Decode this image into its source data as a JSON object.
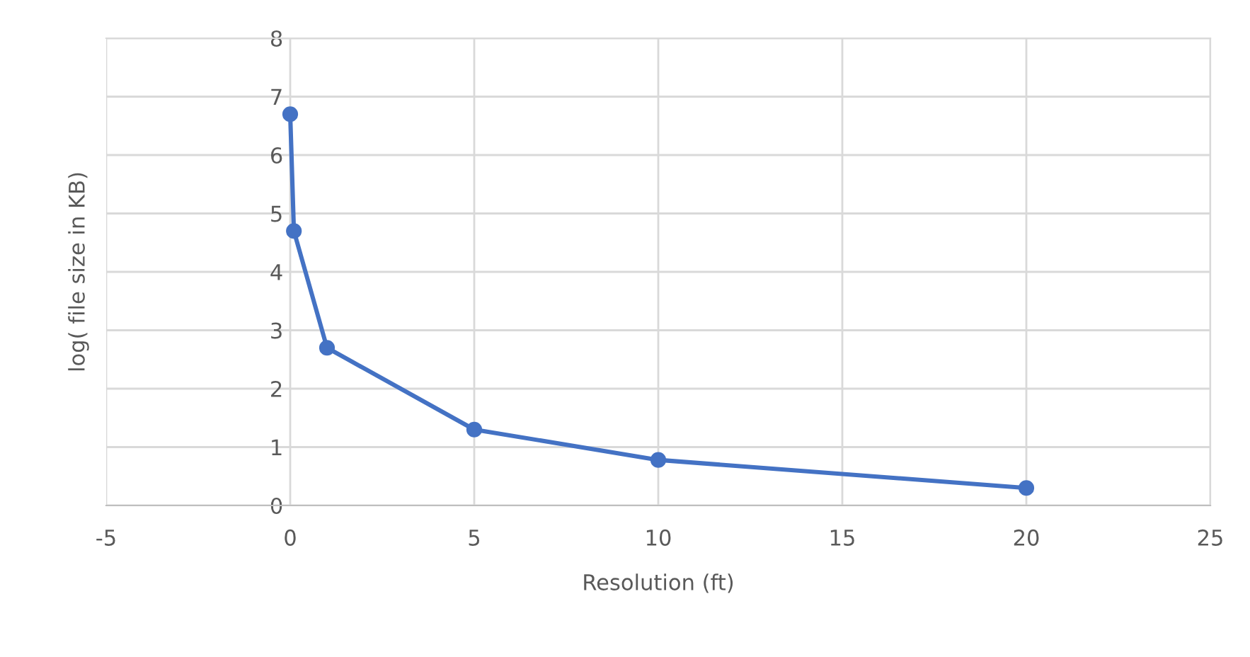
{
  "chart_data": {
    "type": "line",
    "xlabel": "Resolution (ft)",
    "ylabel": "log( file size in KB)",
    "x": [
      0,
      0.1,
      1,
      5,
      10,
      20
    ],
    "series": [
      {
        "color": "#4472c4",
        "values": [
          6.7,
          4.7,
          2.7,
          1.3,
          0.78,
          0.3
        ]
      }
    ],
    "xlim": [
      -5,
      25
    ],
    "xticks": [
      -5,
      0,
      5,
      10,
      15,
      20,
      25
    ],
    "ylim": [
      0,
      8
    ],
    "yticks": [
      0,
      1,
      2,
      3,
      4,
      5,
      6,
      7,
      8
    ],
    "grid": true,
    "marker": "circle",
    "line_style": "solid"
  }
}
